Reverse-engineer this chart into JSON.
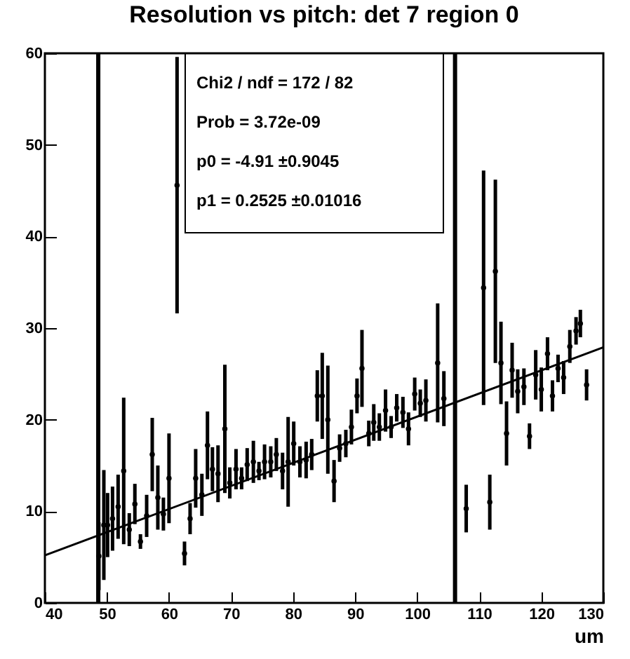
{
  "chart_data": {
    "type": "scatter",
    "title": "Resolution vs pitch: det 7 region 0",
    "xlabel": "um",
    "xlim": [
      40,
      130
    ],
    "xticks": [
      40,
      50,
      60,
      70,
      80,
      90,
      100,
      110,
      120,
      130
    ],
    "ylim": [
      0,
      60
    ],
    "yticks": [
      0,
      10,
      20,
      30,
      40,
      50,
      60
    ],
    "grid": false,
    "legend": false,
    "annotations": [
      "Chi2 / ndf = 172 / 82",
      "Prob = 3.72e-09",
      "p0 = -4.91 ±0.9045",
      "p1 = 0.2525 ±0.01016"
    ],
    "ref_lines": [
      {
        "axis": "x",
        "value": 48.6,
        "color": "#000000"
      },
      {
        "axis": "x",
        "value": 106.1,
        "color": "#000000"
      }
    ],
    "series": [
      {
        "color": "#000000",
        "marker": "circle",
        "x": [
          48.7,
          49.5,
          50.1,
          50.9,
          51.8,
          52.7,
          53.6,
          54.5,
          55.4,
          56.4,
          57.3,
          58.2,
          59.1,
          60.0,
          61.3,
          62.5,
          63.4,
          64.3,
          65.3,
          66.2,
          67.0,
          67.9,
          69.0,
          69.8,
          70.8,
          71.7,
          72.6,
          73.6,
          74.5,
          75.4,
          76.4,
          77.3,
          78.3,
          79.2,
          80.1,
          81.1,
          82.1,
          83.0,
          83.9,
          84.7,
          85.6,
          86.6,
          87.5,
          88.5,
          89.4,
          90.3,
          91.1,
          92.2,
          93.0,
          93.9,
          94.9,
          95.8,
          96.7,
          97.7,
          98.6,
          99.6,
          100.5,
          101.4,
          103.3,
          104.3,
          107.9,
          110.7,
          111.7,
          112.6,
          113.5,
          114.4,
          115.3,
          116.2,
          117.2,
          118.1,
          119.1,
          120.0,
          121.0,
          121.8,
          122.7,
          123.6,
          124.6,
          125.6,
          126.3,
          127.3
        ],
        "values": [
          5.1,
          8.5,
          8.5,
          9.2,
          10.5,
          14.4,
          8.0,
          10.8,
          6.7,
          9.5,
          16.2,
          11.5,
          9.7,
          13.6,
          45.6,
          5.4,
          9.2,
          13.6,
          11.8,
          17.2,
          14.6,
          14.1,
          19.0,
          13.1,
          14.6,
          13.6,
          15.1,
          15.4,
          14.4,
          15.4,
          15.4,
          16.2,
          14.4,
          15.4,
          17.4,
          15.4,
          15.6,
          16.2,
          22.6,
          22.6,
          20.0,
          13.3,
          16.9,
          17.4,
          19.2,
          22.6,
          25.6,
          18.5,
          19.7,
          19.2,
          21.0,
          19.2,
          21.3,
          20.8,
          19.0,
          22.8,
          21.8,
          22.1,
          26.2,
          22.3,
          10.3,
          34.4,
          11.0,
          36.2,
          26.2,
          18.5,
          25.4,
          23.1,
          23.6,
          18.2,
          24.9,
          23.3,
          27.2,
          22.6,
          25.6,
          24.6,
          28.0,
          29.7,
          30.5,
          23.8
        ],
        "errors": [
          3.7,
          6,
          3.5,
          3.5,
          3.5,
          8,
          1.8,
          2.2,
          0.8,
          2.3,
          4,
          3.5,
          1.8,
          4.9,
          14,
          1.3,
          1.7,
          3.2,
          2.3,
          3.7,
          2.4,
          3.1,
          7,
          1.7,
          2.2,
          1.2,
          1.8,
          2.3,
          1,
          1.9,
          1.7,
          1.8,
          2,
          4.9,
          2.4,
          1.7,
          2,
          1.7,
          2.8,
          4.7,
          5.9,
          2.3,
          1.5,
          1.5,
          1.9,
          1.9,
          4.2,
          1.4,
          2,
          1.5,
          2.3,
          1.2,
          1.5,
          1.7,
          1.8,
          1.8,
          1.5,
          2.3,
          6.5,
          3,
          2.6,
          12.8,
          3,
          10,
          4.5,
          3.5,
          3,
          2.4,
          2,
          1.4,
          2.7,
          2.4,
          1.8,
          1.7,
          1.5,
          1.8,
          1.8,
          1.5,
          1.5,
          1.7
        ]
      },
      {
        "type": "line",
        "color": "#000000",
        "x": [
          40,
          130
        ],
        "values": [
          5.2,
          27.9
        ]
      }
    ]
  }
}
